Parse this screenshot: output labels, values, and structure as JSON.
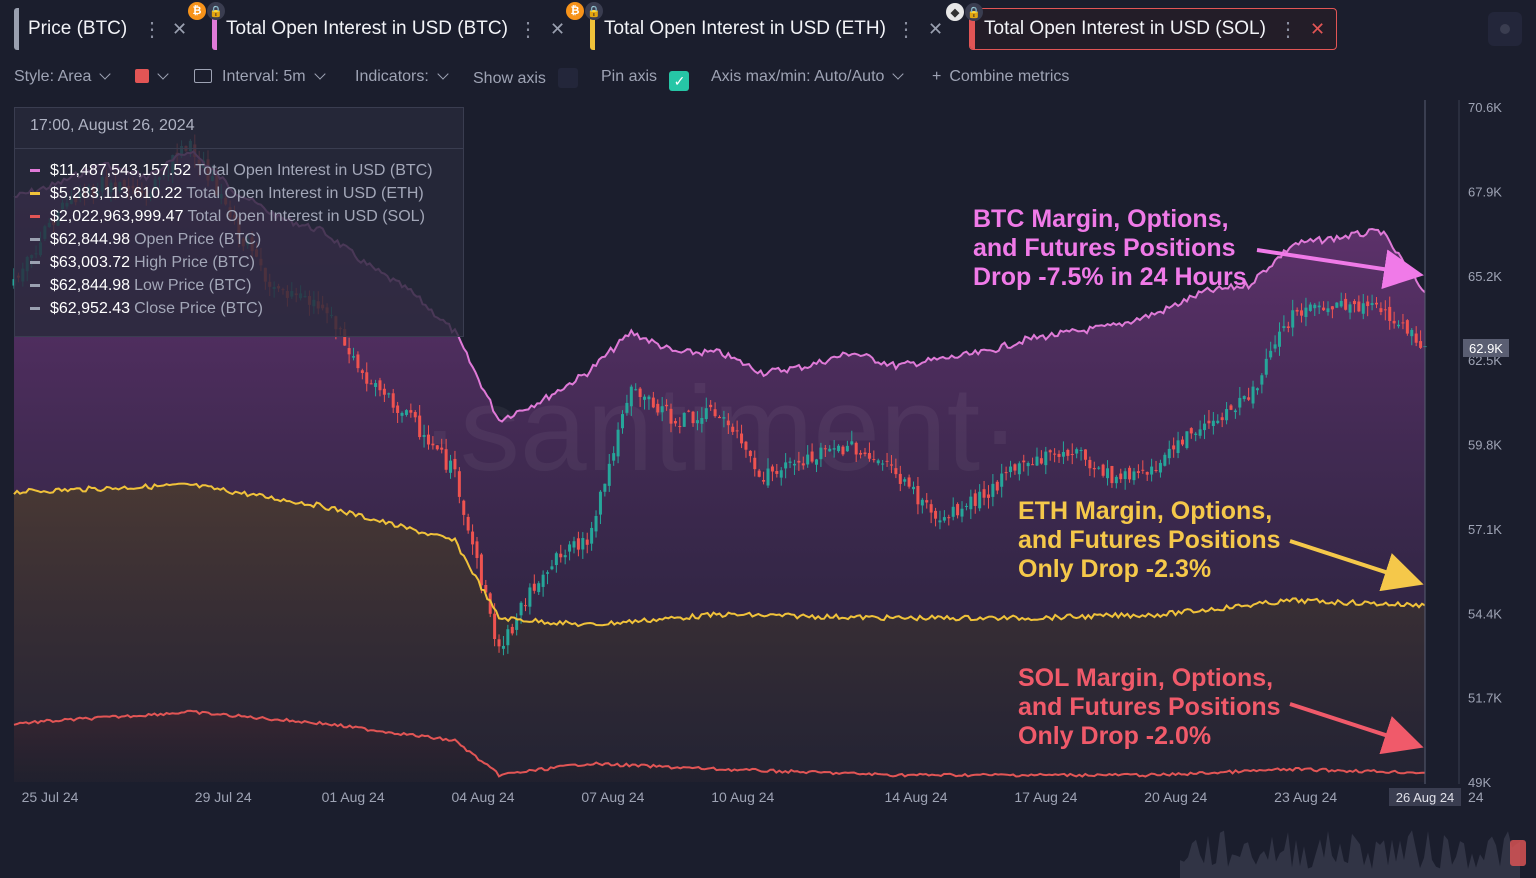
{
  "tabs": [
    {
      "label": "Price (BTC)",
      "stripe": "#9aa0b0",
      "badges": []
    },
    {
      "label": "Total Open Interest in USD (BTC)",
      "stripe": "#e07ad8",
      "badges": [
        "btc-badge-icon",
        "lock-icon"
      ]
    },
    {
      "label": "Total Open Interest in USD (ETH)",
      "stripe": "#f0c23a",
      "badges": [
        "btc-badge-icon",
        "lock-icon"
      ]
    },
    {
      "label": "Total Open Interest in USD (SOL)",
      "stripe": "#e25555",
      "badges": [
        "eth-badge-icon",
        "lock-icon"
      ],
      "active": true
    }
  ],
  "toolbar": {
    "style": "Style: Area",
    "color_swatch": "#e25555",
    "interval": "Interval: 5m",
    "indicators": "Indicators:",
    "show_axis": "Show axis",
    "show_axis_checked": false,
    "pin_axis": "Pin axis",
    "pin_axis_checked": true,
    "axis_maxmin": "Axis max/min: Auto/Auto",
    "combine": "Combine metrics"
  },
  "tooltip": {
    "timestamp": "17:00, August 26, 2024",
    "rows": [
      {
        "value": "$11,487,543,157.52",
        "name": "Total Open Interest in USD (BTC)",
        "color": "#e07ad8"
      },
      {
        "value": "$5,283,113,610.22",
        "name": "Total Open Interest in USD (ETH)",
        "color": "#f0c23a"
      },
      {
        "value": "$2,022,963,999.47",
        "name": "Total Open Interest in USD (SOL)",
        "color": "#e25555"
      },
      {
        "value": "$62,844.98",
        "name": "Open Price (BTC)",
        "color": "#9aa0b0"
      },
      {
        "value": "$63,003.72",
        "name": "High Price (BTC)",
        "color": "#9aa0b0"
      },
      {
        "value": "$62,844.98",
        "name": "Low Price (BTC)",
        "color": "#9aa0b0"
      },
      {
        "value": "$62,952.43",
        "name": "Close Price (BTC)",
        "color": "#9aa0b0"
      }
    ]
  },
  "watermark": "·santiment·",
  "callouts": {
    "btc": [
      "BTC Margin, Options,",
      "and Futures Positions",
      "Drop -7.5% in 24 Hours"
    ],
    "eth": [
      "ETH Margin, Options,",
      "and Futures Positions",
      "Only Drop -2.3%"
    ],
    "sol": [
      "SOL Margin, Options,",
      "and Futures Positions",
      "Only Drop -2.0%"
    ]
  },
  "price_tag": "62.9K",
  "last_date_tag": "26 Aug 24",
  "last_date_tail": "24",
  "colors": {
    "btc_oi": "#e07ad8",
    "eth_oi": "#f0c23a",
    "sol_oi": "#e25555",
    "candle_up": "#26a69a",
    "candle_down": "#ef5350"
  },
  "chart_data": {
    "type": "line",
    "title": "",
    "y_axis_right_ticks": [
      "70.6K",
      "67.9K",
      "65.2K",
      "62.5K",
      "59.8K",
      "57.1K",
      "54.4K",
      "51.7K",
      "49K"
    ],
    "ylim": [
      49000,
      70600
    ],
    "x_ticks": [
      "25 Jul 24",
      "29 Jul 24",
      "01 Aug 24",
      "04 Aug 24",
      "07 Aug 24",
      "10 Aug 24",
      "14 Aug 24",
      "17 Aug 24",
      "20 Aug 24",
      "23 Aug 24",
      "26 Aug 24"
    ],
    "series": [
      {
        "name": "Price (BTC)",
        "kind": "candlestick",
        "unit": "USD",
        "x": [
          "25 Jul 24",
          "26 Jul 24",
          "27 Jul 24",
          "28 Jul 24",
          "29 Jul 24",
          "30 Jul 24",
          "31 Jul 24",
          "01 Aug 24",
          "02 Aug 24",
          "03 Aug 24",
          "04 Aug 24",
          "05 Aug 24",
          "06 Aug 24",
          "07 Aug 24",
          "08 Aug 24",
          "09 Aug 24",
          "10 Aug 24",
          "11 Aug 24",
          "12 Aug 24",
          "13 Aug 24",
          "14 Aug 24",
          "15 Aug 24",
          "16 Aug 24",
          "17 Aug 24",
          "18 Aug 24",
          "19 Aug 24",
          "20 Aug 24",
          "21 Aug 24",
          "22 Aug 24",
          "23 Aug 24",
          "24 Aug 24",
          "25 Aug 24",
          "26 Aug 24"
        ],
        "values": [
          65000,
          67300,
          68200,
          67800,
          69500,
          66800,
          64600,
          64200,
          61800,
          60600,
          58900,
          53200,
          55800,
          56800,
          61500,
          60600,
          60800,
          58800,
          59300,
          59800,
          58900,
          57300,
          58200,
          59300,
          59600,
          58700,
          59200,
          60500,
          61300,
          64000,
          64200,
          64200,
          62952
        ]
      },
      {
        "name": "Total Open Interest in USD (BTC)",
        "unit": "USD",
        "x": [
          "25 Jul 24",
          "26 Jul 24",
          "27 Jul 24",
          "28 Jul 24",
          "29 Jul 24",
          "30 Jul 24",
          "31 Jul 24",
          "01 Aug 24",
          "02 Aug 24",
          "03 Aug 24",
          "04 Aug 24",
          "05 Aug 24",
          "06 Aug 24",
          "07 Aug 24",
          "08 Aug 24",
          "09 Aug 24",
          "10 Aug 24",
          "11 Aug 24",
          "12 Aug 24",
          "13 Aug 24",
          "14 Aug 24",
          "15 Aug 24",
          "16 Aug 24",
          "17 Aug 24",
          "18 Aug 24",
          "19 Aug 24",
          "20 Aug 24",
          "21 Aug 24",
          "22 Aug 24",
          "23 Aug 24",
          "24 Aug 24",
          "25 Aug 24",
          "26 Aug 24"
        ],
        "values": [
          12900000000.0,
          13100000000.0,
          13400000000.0,
          13200000000.0,
          13600000000.0,
          13000000000.0,
          12600000000.0,
          12400000000.0,
          11900000000.0,
          11500000000.0,
          10900000000.0,
          9600000000.0,
          9900000000.0,
          10300000000.0,
          10900000000.0,
          10600000000.0,
          10600000000.0,
          10300000000.0,
          10400000000.0,
          10600000000.0,
          10400000000.0,
          10500000000.0,
          10600000000.0,
          10800000000.0,
          10900000000.0,
          11000000000.0,
          11200000000.0,
          11500000000.0,
          11600000000.0,
          12200000000.0,
          12300000000.0,
          12400000000.0,
          11490000000.0
        ]
      },
      {
        "name": "Total Open Interest in USD (ETH)",
        "unit": "USD",
        "x": [
          "25 Jul 24",
          "29 Jul 24",
          "01 Aug 24",
          "04 Aug 24",
          "05 Aug 24",
          "07 Aug 24",
          "10 Aug 24",
          "14 Aug 24",
          "17 Aug 24",
          "20 Aug 24",
          "23 Aug 24",
          "26 Aug 24"
        ],
        "values": [
          6900000000.0,
          7000000000.0,
          6700000000.0,
          6200000000.0,
          5100000000.0,
          5000000000.0,
          5150000000.0,
          5100000000.0,
          5100000000.0,
          5150000000.0,
          5350000000.0,
          5280000000.0
        ]
      },
      {
        "name": "Total Open Interest in USD (SOL)",
        "unit": "USD",
        "x": [
          "25 Jul 24",
          "29 Jul 24",
          "01 Aug 24",
          "04 Aug 24",
          "05 Aug 24",
          "07 Aug 24",
          "10 Aug 24",
          "14 Aug 24",
          "17 Aug 24",
          "20 Aug 24",
          "23 Aug 24",
          "26 Aug 24"
        ],
        "values": [
          2450000000.0,
          2550000000.0,
          2450000000.0,
          2300000000.0,
          2000000000.0,
          2100000000.0,
          2050000000.0,
          2000000000.0,
          2000000000.0,
          2000000000.0,
          2050000000.0,
          2020000000.0
        ]
      }
    ]
  }
}
